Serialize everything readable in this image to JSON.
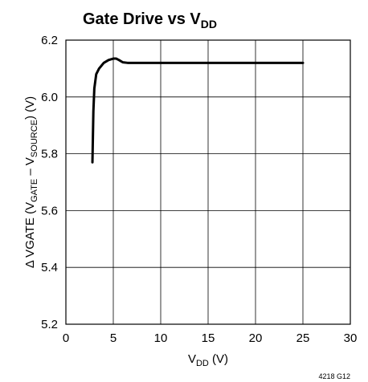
{
  "chart_data": {
    "type": "line",
    "title": "Gate Drive vs V",
    "title_sub": "DD",
    "xlabel": "V",
    "xlabel_sub": "DD",
    "xlabel_unit": " (V)",
    "ylabel_parts": {
      "prefix": "Δ V",
      "gate_sub": "GATE",
      "mid": " (V",
      "gate_sub2": "GATE",
      "minus": " – V",
      "source_sub": "SOURCE",
      "suffix": ") (V)"
    },
    "xlim": [
      0,
      30
    ],
    "ylim": [
      5.2,
      6.2
    ],
    "xticks": [
      "0",
      "5",
      "10",
      "15",
      "20",
      "25",
      "30"
    ],
    "yticks": [
      "5.2",
      "5.4",
      "5.6",
      "5.8",
      "6.0",
      "6.2"
    ],
    "grid": true,
    "note": "4218 G12",
    "series": [
      {
        "x": [
          2.8,
          2.85,
          2.9,
          3.0,
          3.2,
          3.5,
          4.0,
          4.5,
          5.0,
          5.3,
          5.6,
          6.0,
          6.5,
          10,
          15,
          20,
          25
        ],
        "y": [
          5.77,
          5.86,
          5.95,
          6.03,
          6.08,
          6.1,
          6.12,
          6.13,
          6.135,
          6.135,
          6.13,
          6.122,
          6.12,
          6.12,
          6.12,
          6.12,
          6.12
        ]
      }
    ]
  }
}
